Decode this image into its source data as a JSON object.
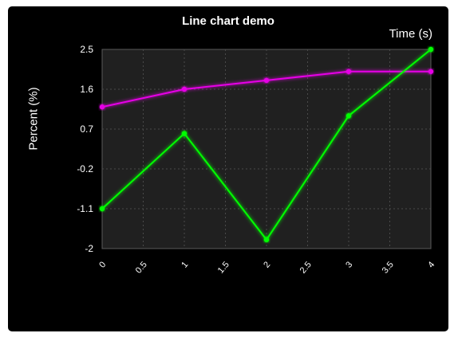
{
  "window": {
    "background": "#000000"
  },
  "chart_data": {
    "type": "line",
    "title": "Line chart demo",
    "xlabel": "Time (s)",
    "ylabel": "Percent (%)",
    "xlim": [
      0,
      4
    ],
    "ylim": [
      -2,
      2.5
    ],
    "x_ticks": [
      "0",
      "0.5",
      "1",
      "1.5",
      "2",
      "2.5",
      "3",
      "3.5",
      "4"
    ],
    "y_ticks": [
      "2.5",
      "1.6",
      "0.7",
      "-0.2",
      "-1.1",
      "-2"
    ],
    "grid": true,
    "plot_background": "#202020",
    "series": [
      {
        "color": "#e600e6",
        "x": [
          0,
          1,
          2,
          3,
          4
        ],
        "y": [
          1.2,
          1.6,
          1.8,
          2.0,
          2.0
        ]
      },
      {
        "color": "#00ff00",
        "x": [
          0,
          1,
          2,
          3,
          4
        ],
        "y": [
          -1.1,
          0.6,
          -1.8,
          1.0,
          2.5
        ]
      }
    ]
  }
}
